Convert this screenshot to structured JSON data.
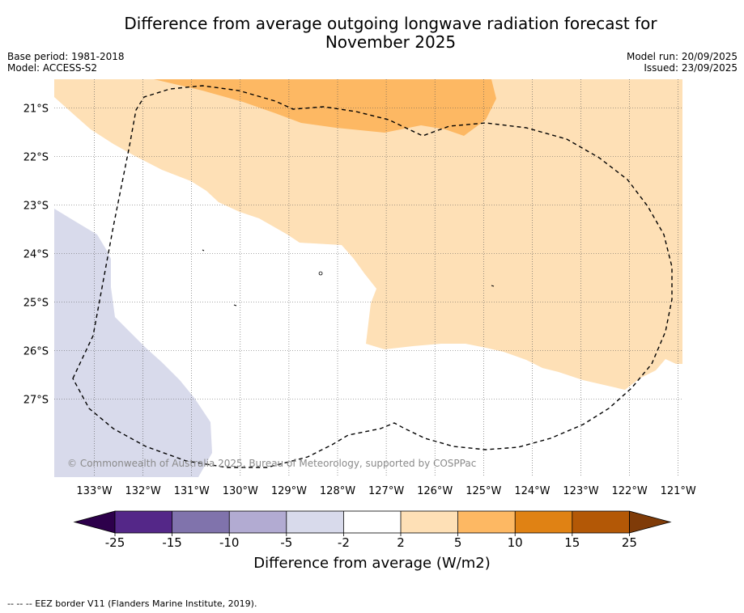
{
  "title_line1": "Difference from average outgoing longwave radiation forecast for",
  "title_line2": "November 2025",
  "base_period": "Base period: 1981-2018",
  "model": "Model: ACCESS-S2",
  "model_run": "Model run: 20/09/2025",
  "issued": "Issued: 23/09/2025",
  "copyright": "© Commonwealth of Australia 2025, Bureau of Meteorology, supported by COSPPac",
  "footer": "-- -- -- EEZ border V11 (Flanders Marine Institute, 2019).",
  "map": {
    "lat_labels": [
      "21°S",
      "22°S",
      "23°S",
      "24°S",
      "25°S",
      "26°S",
      "27°S"
    ],
    "lon_labels": [
      "133°W",
      "132°W",
      "131°W",
      "130°W",
      "129°W",
      "128°W",
      "127°W",
      "126°W",
      "125°W",
      "124°W",
      "123°W",
      "122°W",
      "121°W"
    ]
  },
  "colorbar": {
    "label": "Difference from average (W/m2)",
    "ticks": [
      "-25",
      "-15",
      "-10",
      "-5",
      "-2",
      "2",
      "5",
      "10",
      "15",
      "25"
    ],
    "colors": {
      "lt_m25": "#2d004b",
      "m25_m15": "#542788",
      "m15_m10": "#8073ac",
      "m10_m5": "#b2abd2",
      "m5_m2": "#d8daeb",
      "m2_2": "#ffffff",
      "p2_5": "#fee0b6",
      "p5_10": "#fdb863",
      "p10_15": "#e08214",
      "p15_25": "#b35806",
      "gt_25": "#7f3b08"
    }
  }
}
